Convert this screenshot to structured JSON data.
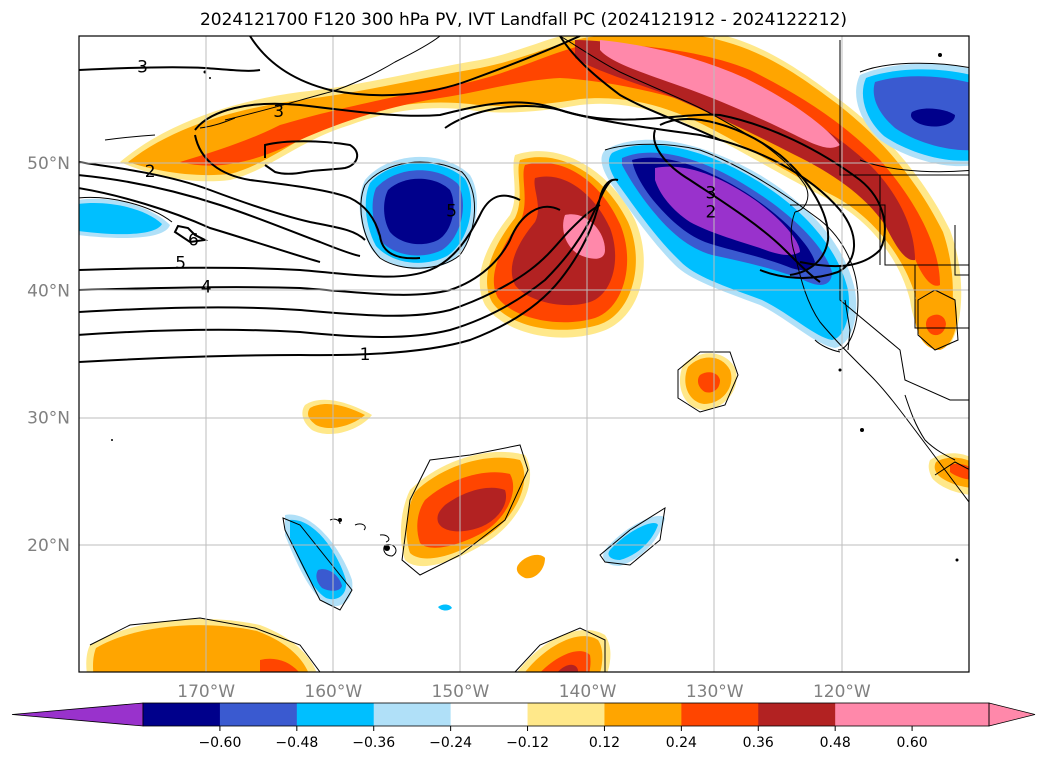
{
  "title": "2024121700 F120 300 hPa PV, IVT Landfall PC (2024121912 - 2024122212)",
  "map": {
    "projection": "PlateCarree",
    "lon_range": [
      -180,
      -110
    ],
    "lat_range": [
      10,
      60
    ],
    "lon_ticks": [
      {
        "lon": -170,
        "label": "170°W"
      },
      {
        "lon": -160,
        "label": "160°W"
      },
      {
        "lon": -150,
        "label": "150°W"
      },
      {
        "lon": -140,
        "label": "140°W"
      },
      {
        "lon": -130,
        "label": "130°W"
      },
      {
        "lon": -120,
        "label": "120°W"
      }
    ],
    "lat_ticks": [
      {
        "lat": 20,
        "label": "20°N"
      },
      {
        "lat": 30,
        "label": "30°N"
      },
      {
        "lat": 40,
        "label": "40°N"
      },
      {
        "lat": 50,
        "label": "50°N"
      }
    ],
    "gridlines": true,
    "pv_contour_labels": [
      {
        "text": "3",
        "lon": -175,
        "lat": 57.6
      },
      {
        "text": "3",
        "lon": -164.3,
        "lat": 54.1
      },
      {
        "text": "2",
        "lon": -174.4,
        "lat": 49.4
      },
      {
        "text": "6",
        "lon": -171,
        "lat": 44
      },
      {
        "text": "5",
        "lon": -172,
        "lat": 42.2
      },
      {
        "text": "4",
        "lon": -170,
        "lat": 40.3
      },
      {
        "text": "1",
        "lon": -157.5,
        "lat": 35
      },
      {
        "text": "5",
        "lon": -150.7,
        "lat": 46.3
      },
      {
        "text": "3",
        "lon": -130.3,
        "lat": 47.7
      },
      {
        "text": "2",
        "lon": -130.3,
        "lat": 46.2
      }
    ]
  },
  "colorbar": {
    "ticks": [
      "−0.60",
      "−0.48",
      "−0.36",
      "−0.24",
      "−0.12",
      "0.12",
      "0.24",
      "0.36",
      "0.48",
      "0.60"
    ],
    "colors": [
      "#9932cc",
      "#00008b",
      "#3a5ad0",
      "#00bfff",
      "#b0e0f8",
      "#ffffff",
      "#ffe88a",
      "#ffa500",
      "#ff4500",
      "#b22222",
      "#ff88aa",
      "#ff88aa"
    ],
    "extend": "both"
  }
}
